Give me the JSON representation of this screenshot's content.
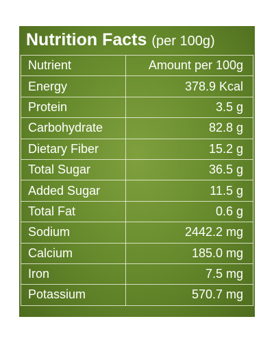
{
  "header": {
    "title": "Nutrition Facts",
    "subtitle": "(per 100g)"
  },
  "table": {
    "columns": [
      "Nutrient",
      "Amount per 100g"
    ],
    "rows": [
      [
        "Energy",
        "378.9 Kcal"
      ],
      [
        "Protein",
        "3.5 g"
      ],
      [
        "Carbohydrate",
        "82.8 g"
      ],
      [
        "Dietary Fiber",
        "15.2 g"
      ],
      [
        "Total Sugar",
        "36.5 g"
      ],
      [
        "Added Sugar",
        "11.5 g"
      ],
      [
        "Total Fat",
        "0.6 g"
      ],
      [
        "Sodium",
        "2442.2 mg"
      ],
      [
        "Calcium",
        "185.0 mg"
      ],
      [
        "Iron",
        "7.5 mg"
      ],
      [
        "Potassium",
        "570.7 mg"
      ]
    ]
  }
}
